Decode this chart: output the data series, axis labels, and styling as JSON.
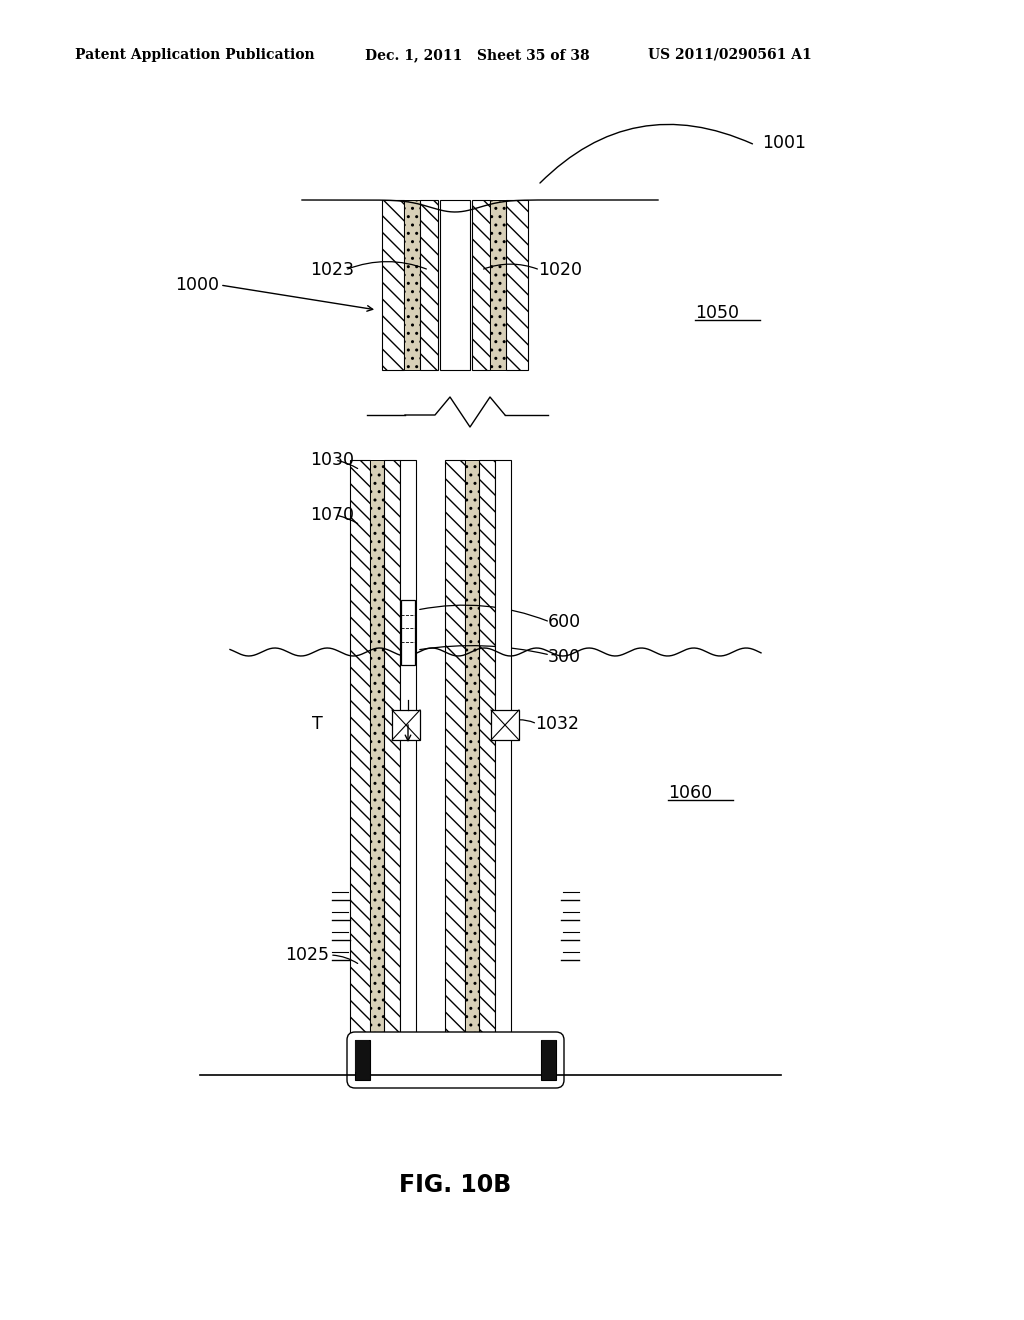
{
  "header_left": "Patent Application Publication",
  "header_mid": "Dec. 1, 2011   Sheet 35 of 38",
  "header_right": "US 2011/0290561 A1",
  "fig_title": "FIG. 10B",
  "bg": "#ffffff",
  "lc": "#000000"
}
